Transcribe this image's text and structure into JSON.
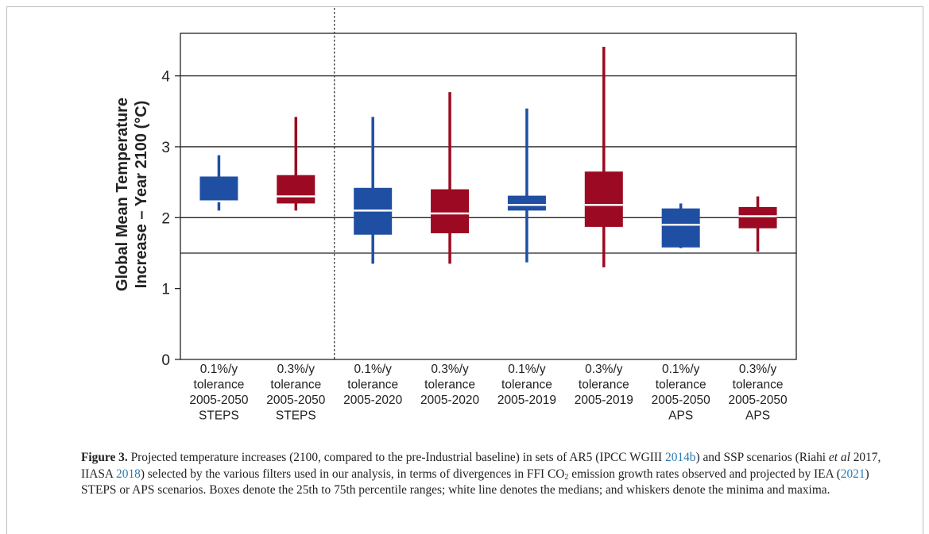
{
  "chart_data": {
    "type": "box",
    "ylabel_line1": "Global Mean Temperature",
    "ylabel_line2": "Increase – Year 2100 (°C)",
    "ylim": [
      0,
      4.6
    ],
    "yticks": [
      "0",
      "1",
      "2",
      "3",
      "4"
    ],
    "ytick_values": [
      0,
      1,
      2,
      3,
      4
    ],
    "hlines": [
      1.5,
      2,
      3,
      4
    ],
    "separator_after_category": 2,
    "colors": {
      "blue": "#1f4fa3",
      "red": "#9b0a22"
    },
    "categories": [
      {
        "label": [
          "0.1%/y",
          "tolerance",
          "2005-2050",
          "STEPS"
        ],
        "color": "blue",
        "min": 2.1,
        "q1": 2.23,
        "median": 2.23,
        "q3": 2.58,
        "max": 2.88
      },
      {
        "label": [
          "0.3%/y",
          "tolerance",
          "2005-2050",
          "STEPS"
        ],
        "color": "red",
        "min": 2.1,
        "q1": 2.2,
        "median": 2.3,
        "q3": 2.6,
        "max": 3.42
      },
      {
        "label": [
          "0.1%/y",
          "tolerance",
          "2005-2020"
        ],
        "color": "blue",
        "min": 1.35,
        "q1": 1.76,
        "median": 2.1,
        "q3": 2.42,
        "max": 3.42
      },
      {
        "label": [
          "0.3%/y",
          "tolerance",
          "2005-2020"
        ],
        "color": "red",
        "min": 1.35,
        "q1": 1.78,
        "median": 2.06,
        "q3": 2.4,
        "max": 3.77
      },
      {
        "label": [
          "0.1%/y",
          "tolerance",
          "2005-2019"
        ],
        "color": "blue",
        "min": 1.37,
        "q1": 2.1,
        "median": 2.18,
        "q3": 2.31,
        "max": 3.54
      },
      {
        "label": [
          "0.3%/y",
          "tolerance",
          "2005-2019"
        ],
        "color": "red",
        "min": 1.3,
        "q1": 1.87,
        "median": 2.18,
        "q3": 2.65,
        "max": 4.41
      },
      {
        "label": [
          "0.1%/y",
          "tolerance",
          "2005-2050",
          "APS"
        ],
        "color": "blue",
        "min": 1.57,
        "q1": 1.58,
        "median": 1.9,
        "q3": 2.13,
        "max": 2.2
      },
      {
        "label": [
          "0.3%/y",
          "tolerance",
          "2005-2050",
          "APS"
        ],
        "color": "red",
        "min": 1.52,
        "q1": 1.85,
        "median": 2.02,
        "q3": 2.15,
        "max": 2.3
      }
    ]
  },
  "caption": {
    "label": "Figure 3.",
    "p1": " Projected temperature increases (2100, compared to the pre-Industrial baseline) in sets of AR5 (IPCC WGIII ",
    "r1": "2014b",
    "p2": ") and SSP scenarios (Riahi ",
    "etal": "et al",
    "p3": " 2017, IIASA ",
    "r2": "2018",
    "p4": ") selected by the various filters used in our analysis, in terms of divergences in FFI CO",
    "sub": "2",
    "p5": " emission growth rates observed and projected by IEA (",
    "r3": "2021",
    "p6": ") STEPS or APS scenarios. Boxes denote the 25th to 75th percentile ranges; white line denotes the medians; and whiskers denote the minima and maxima."
  }
}
